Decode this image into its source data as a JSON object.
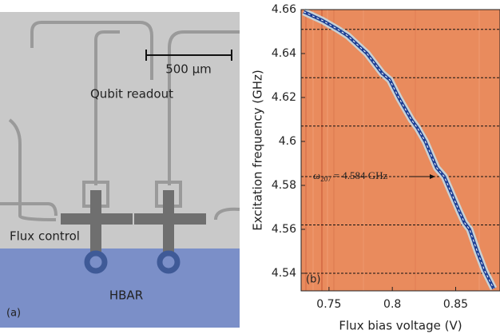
{
  "panel_a": {
    "label": "(a)",
    "scale_bar": "500 μm",
    "texts": [
      "Qubit readout",
      "Flux control",
      "HBAR"
    ]
  },
  "chart_data": {
    "type": "line",
    "label": "(b)",
    "xlabel": "Flux bias voltage (V)",
    "ylabel": "Excitation frequency (GHz)",
    "xlim": [
      0.728,
      0.885
    ],
    "ylim": [
      4.532,
      4.66
    ],
    "xticks": [
      0.75,
      0.8,
      0.85
    ],
    "yticks": [
      4.54,
      4.56,
      4.58,
      4.6,
      4.62,
      4.64,
      4.66
    ],
    "x": [
      0.73,
      0.745,
      0.757,
      0.765,
      0.78,
      0.792,
      0.798,
      0.805,
      0.815,
      0.82,
      0.826,
      0.835,
      0.841,
      0.853,
      0.857,
      0.861,
      0.867,
      0.873,
      0.88
    ],
    "series": [
      {
        "color": "#1c3f95",
        "values": [
          4.659,
          4.655,
          4.651,
          4.648,
          4.64,
          4.631,
          4.628,
          4.62,
          4.61,
          4.606,
          4.6,
          4.588,
          4.584,
          4.568,
          4.563,
          4.56,
          4.55,
          4.541,
          4.533
        ]
      }
    ],
    "hlines": [
      4.651,
      4.629,
      4.607,
      4.584,
      4.562,
      4.54
    ],
    "annotation": {
      "symbol": "ω",
      "subscript": "207",
      "text": "= 4.584 GHz"
    }
  }
}
